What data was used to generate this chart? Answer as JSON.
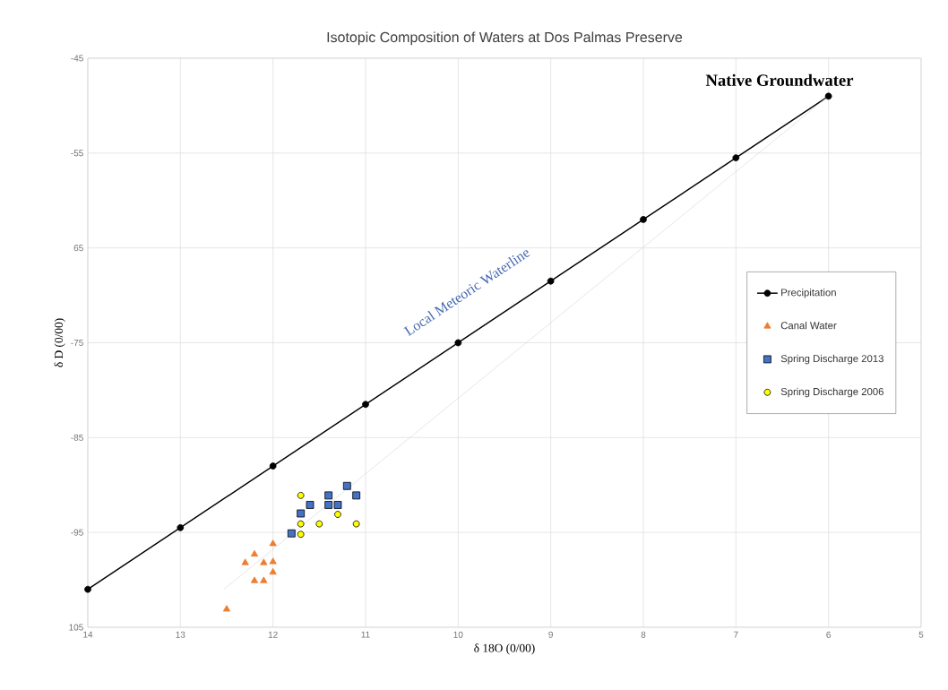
{
  "chart_data": {
    "type": "scatter",
    "title": "Isotopic Composition of Waters at Dos Palmas Preserve",
    "xlabel": "δ 18O (0/00)",
    "ylabel": "δ D (0/00)",
    "xlim": [
      14,
      5
    ],
    "xticks": [
      14,
      13,
      12,
      11,
      10,
      9,
      8,
      7,
      6,
      5
    ],
    "ylim": [
      -105,
      -45
    ],
    "yticks": [
      {
        "value": -105,
        "label": "105"
      },
      -95,
      -85,
      -75,
      {
        "value": -65,
        "label": "65"
      },
      -55,
      -45
    ],
    "grid": true,
    "legend": "right",
    "annotations": [
      {
        "text": "Native Groundwater",
        "x": 6,
        "y": -49
      },
      "Local Meteoric Waterline"
    ],
    "series": [
      {
        "name": "Precipitation",
        "type": "line",
        "marker": "circle",
        "color": "#000000",
        "x": [
          14,
          13,
          12,
          11,
          10,
          9,
          8,
          7,
          6
        ],
        "values": [
          -101,
          -94.5,
          -88,
          -81.5,
          -75,
          -68.5,
          -62,
          -55.5,
          -49
        ]
      },
      {
        "name": "Canal Water",
        "marker": "triangle",
        "color": "#ed7d31",
        "x": [
          12.0,
          12.2,
          12.3,
          12.1,
          12.0,
          12.0,
          12.2,
          12.1,
          12.5
        ],
        "values": [
          -96.2,
          -97.3,
          -98.2,
          -98.2,
          -98.1,
          -99.2,
          -100.1,
          -100.1,
          -103.1
        ]
      },
      {
        "name": "Spring Discharge 2013",
        "marker": "square",
        "color": "#4472c4",
        "x": [
          11.2,
          11.1,
          11.4,
          11.4,
          11.3,
          11.6,
          11.7,
          11.8
        ],
        "values": [
          -90.1,
          -91.1,
          -91.1,
          -92.1,
          -92.1,
          -92.1,
          -93.0,
          -95.1
        ]
      },
      {
        "name": "Spring Discharge 2006",
        "marker": "circle",
        "color": "#ffff00",
        "x": [
          11.7,
          11.3,
          11.7,
          11.5,
          11.1,
          11.7
        ],
        "values": [
          -91.1,
          -93.1,
          -94.1,
          -94.1,
          -94.1,
          -95.2
        ]
      },
      {
        "type": "line",
        "marker": "none",
        "color": "#d9d9d9",
        "x": [
          12.53,
          6
        ],
        "values": [
          -101,
          -49
        ]
      }
    ]
  }
}
